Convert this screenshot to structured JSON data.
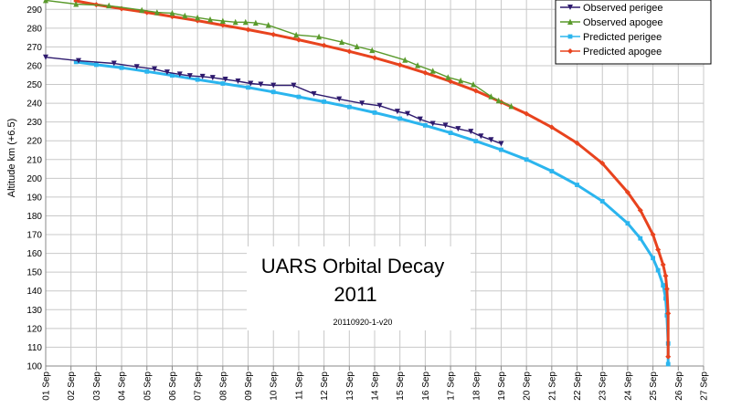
{
  "chart_data": {
    "type": "line",
    "title": "UARS Orbital Decay",
    "title_year": "2011",
    "subtitle": "20110920-1-v20",
    "ylabel": "Altitude km (+6.5)",
    "xlabel": "",
    "ylim": [
      100,
      290
    ],
    "xlim": [
      1,
      27
    ],
    "y_ticks": [
      100,
      110,
      120,
      130,
      140,
      150,
      160,
      170,
      180,
      190,
      200,
      210,
      220,
      230,
      240,
      250,
      260,
      270,
      280,
      290
    ],
    "x_ticks": [
      "01 Sep",
      "02 Sep",
      "03 Sep",
      "04 Sep",
      "05 Sep",
      "06 Sep",
      "07 Sep",
      "08 Sep",
      "09 Sep",
      "10 Sep",
      "11 Sep",
      "12 Sep",
      "13 Sep",
      "14 Sep",
      "15 Sep",
      "16 Sep",
      "17 Sep",
      "18 Sep",
      "19 Sep",
      "20 Sep",
      "21 Sep",
      "22 Sep",
      "23 Sep",
      "24 Sep",
      "25 Sep",
      "26 Sep",
      "27 Sep"
    ],
    "grid": true,
    "legend_position": "top-right",
    "series": [
      {
        "name": "Observed perigee",
        "color": "#2e1a6e",
        "marker": "triangle-down",
        "x": [
          1.0,
          2.3,
          3.7,
          4.6,
          5.3,
          5.8,
          6.3,
          6.7,
          7.2,
          7.6,
          8.1,
          8.6,
          9.1,
          9.5,
          10.0,
          10.8,
          11.6,
          12.6,
          13.5,
          14.2,
          14.9,
          15.3,
          15.8,
          16.3,
          16.8,
          17.3,
          17.8,
          18.2,
          18.6,
          19.0
        ],
        "y": [
          264.5,
          262.6,
          261.2,
          259.4,
          258.2,
          256.5,
          255.4,
          254.6,
          254.2,
          253.6,
          252.7,
          251.7,
          250.5,
          250.0,
          249.5,
          249.5,
          245.0,
          242.2,
          239.9,
          238.7,
          235.6,
          234.4,
          231.5,
          229.1,
          228.2,
          226.4,
          224.9,
          222.4,
          220.5,
          218.4
        ]
      },
      {
        "name": "Observed apogee",
        "color": "#5a9a2c",
        "marker": "triangle-up",
        "x": [
          1.0,
          2.2,
          3.5,
          4.8,
          5.4,
          6.0,
          6.5,
          7.0,
          7.5,
          8.0,
          8.5,
          8.9,
          9.3,
          9.8,
          10.9,
          11.8,
          12.7,
          13.3,
          13.9,
          15.2,
          15.7,
          16.3,
          16.9,
          17.4,
          17.9,
          18.6,
          18.9,
          19.4
        ],
        "y": [
          294.8,
          292.8,
          292.0,
          289.6,
          288.4,
          288.0,
          286.6,
          285.6,
          284.6,
          283.8,
          283.2,
          283.2,
          282.8,
          281.6,
          276.4,
          275.4,
          272.6,
          270.2,
          268.2,
          263.0,
          260.2,
          257.2,
          253.8,
          252.0,
          250.0,
          243.6,
          241.4,
          238.4
        ]
      },
      {
        "name": "Predicted perigee",
        "color": "#2bb5ee",
        "marker": "square",
        "x": [
          2.2,
          3.0,
          4.0,
          5.0,
          6.0,
          7.0,
          8.0,
          9.0,
          10.0,
          11.0,
          12.0,
          13.0,
          14.0,
          15.0,
          16.0,
          17.0,
          18.0,
          19.0,
          20.0,
          21.0,
          22.0,
          23.0,
          24.0,
          24.5,
          25.0,
          25.2,
          25.4,
          25.5,
          25.55,
          25.6,
          25.6
        ],
        "y": [
          262.0,
          260.5,
          258.9,
          256.9,
          254.8,
          252.6,
          250.5,
          248.4,
          246.0,
          243.4,
          240.8,
          238.0,
          235.0,
          231.8,
          228.2,
          224.2,
          219.8,
          215.2,
          210.0,
          203.8,
          196.5,
          187.8,
          176.0,
          168.0,
          157.5,
          151.0,
          143.0,
          136.0,
          127.0,
          112.0,
          101.0
        ]
      },
      {
        "name": "Predicted apogee",
        "color": "#e8431e",
        "marker": "diamond",
        "x": [
          2.2,
          3.0,
          4.0,
          5.0,
          6.0,
          7.0,
          8.0,
          9.0,
          10.0,
          11.0,
          12.0,
          13.0,
          14.0,
          15.0,
          16.0,
          17.0,
          18.0,
          19.0,
          20.0,
          21.0,
          22.0,
          23.0,
          24.0,
          24.5,
          25.0,
          25.2,
          25.4,
          25.5,
          25.55,
          25.6,
          25.6
        ],
        "y": [
          294.5,
          292.5,
          290.4,
          288.4,
          286.2,
          284.0,
          281.6,
          279.2,
          276.6,
          273.8,
          270.8,
          267.6,
          264.2,
          260.4,
          256.2,
          251.6,
          246.6,
          240.6,
          234.4,
          227.2,
          218.8,
          208.0,
          192.6,
          183.0,
          170.0,
          162.0,
          154.0,
          148.0,
          141.0,
          128.0,
          105.0
        ]
      }
    ]
  }
}
